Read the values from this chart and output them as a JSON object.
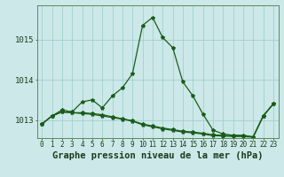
{
  "xlabel": "Graphe pression niveau de la mer (hPa)",
  "x_ticks": [
    0,
    1,
    2,
    3,
    4,
    5,
    6,
    7,
    8,
    9,
    10,
    11,
    12,
    13,
    14,
    15,
    16,
    17,
    18,
    19,
    20,
    21,
    22,
    23
  ],
  "ylim": [
    1012.55,
    1015.85
  ],
  "yticks": [
    1013,
    1014,
    1015
  ],
  "bg_color": "#cce8e8",
  "line_color": "#1a5c1a",
  "series1": [
    1012.9,
    1013.1,
    1013.25,
    1013.2,
    1013.45,
    1013.5,
    1013.3,
    1013.6,
    1013.8,
    1014.15,
    1015.35,
    1015.55,
    1015.05,
    1014.8,
    1013.95,
    1013.6,
    1013.15,
    1012.75,
    1012.65,
    1012.62,
    1012.62,
    1012.58,
    1013.1,
    1013.4
  ],
  "series2": [
    1012.9,
    1013.1,
    1013.2,
    1013.18,
    1013.18,
    1013.16,
    1013.13,
    1013.08,
    1013.03,
    1012.98,
    1012.9,
    1012.85,
    1012.8,
    1012.76,
    1012.72,
    1012.7,
    1012.67,
    1012.63,
    1012.62,
    1012.61,
    1012.6,
    1012.58,
    1013.1,
    1013.4
  ],
  "series3": [
    1012.9,
    1013.1,
    1013.2,
    1013.18,
    1013.16,
    1013.14,
    1013.1,
    1013.06,
    1013.02,
    1012.97,
    1012.88,
    1012.83,
    1012.78,
    1012.74,
    1012.7,
    1012.68,
    1012.65,
    1012.61,
    1012.6,
    1012.59,
    1012.59,
    1012.57,
    1013.1,
    1013.4
  ],
  "grid_color": "#99cccc",
  "tick_label_fontsize": 5.5,
  "xlabel_fontsize": 7.5,
  "ylabel_fontsize": 6.5,
  "lw": 0.9,
  "markersize": 3.0
}
